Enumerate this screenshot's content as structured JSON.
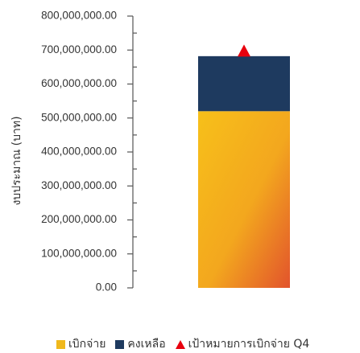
{
  "chart_data": {
    "type": "bar",
    "stacked": true,
    "ylabel": "งบประมาณ (บาท)",
    "ylim": [
      0,
      800000000
    ],
    "y_ticks": [
      "0.00",
      "100,000,000.00",
      "200,000,000.00",
      "300,000,000.00",
      "400,000,000.00",
      "500,000,000.00",
      "600,000,000.00",
      "700,000,000.00",
      "800,000,000.00"
    ],
    "y_tick_values": [
      0,
      100000000,
      200000000,
      300000000,
      400000000,
      500000000,
      600000000,
      700000000,
      800000000
    ],
    "grid": false,
    "legend_position": "bottom",
    "series": [
      {
        "name": "เบิกจ่าย",
        "values": [
          520000000
        ],
        "color": "#f0a818"
      },
      {
        "name": "คงเหลือ",
        "values": [
          162000000
        ],
        "color": "#1e3a5f"
      }
    ],
    "markers": [
      {
        "name": "เป้าหมายการเบิกจ่าย Q4",
        "values": [
          688000000
        ],
        "color": "#e8000e",
        "shape": "triangle"
      }
    ]
  },
  "legend": {
    "spent": "เบิกจ่าย",
    "remaining": "คงเหลือ",
    "target": "เป้าหมายการเบิกจ่าย Q4"
  }
}
